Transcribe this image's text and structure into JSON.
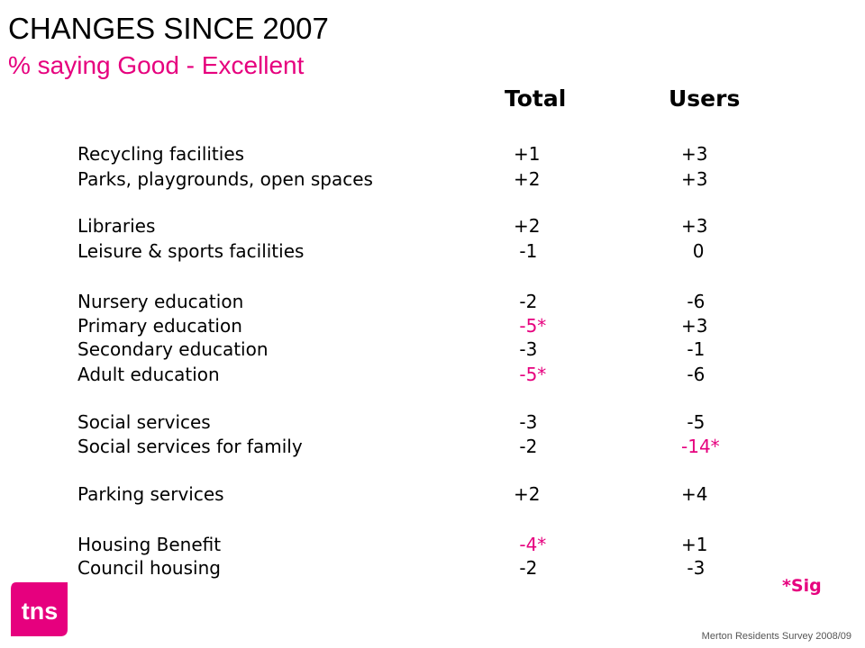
{
  "title": "CHANGES SINCE 2007",
  "subtitle": "% saying Good - Excellent",
  "columns": {
    "total": "Total",
    "users": "Users"
  },
  "rows": [
    {
      "label": "Recycling facilities",
      "total": "+1",
      "users": "+3",
      "total_sig": false,
      "users_sig": false
    },
    {
      "label": "Parks, playgrounds, open spaces",
      "total": "+2",
      "users": "+3",
      "total_sig": false,
      "users_sig": false
    },
    {
      "label": "Libraries",
      "total": "+2",
      "users": "+3",
      "total_sig": false,
      "users_sig": false
    },
    {
      "label": "Leisure & sports facilities",
      "total": " -1",
      "users": "  0",
      "total_sig": false,
      "users_sig": false
    },
    {
      "label": "Nursery education",
      "total": " -2",
      "users": " -6",
      "total_sig": false,
      "users_sig": false
    },
    {
      "label": "Primary education",
      "total": " -5*",
      "users": "+3",
      "total_sig": true,
      "users_sig": false
    },
    {
      "label": "Secondary education",
      "total": " -3",
      "users": " -1",
      "total_sig": false,
      "users_sig": false
    },
    {
      "label": "Adult education",
      "total": " -5*",
      "users": " -6",
      "total_sig": true,
      "users_sig": false
    },
    {
      "label": "Social services",
      "total": " -3",
      "users": " -5",
      "total_sig": false,
      "users_sig": false
    },
    {
      "label": "Social services for family",
      "total": " -2",
      "users": "-14*",
      "total_sig": false,
      "users_sig": true
    },
    {
      "label": "Parking services",
      "total": "+2",
      "users": "+4",
      "total_sig": false,
      "users_sig": false
    },
    {
      "label": "Housing Benefit",
      "total": " -4*",
      "users": "+1",
      "total_sig": true,
      "users_sig": false
    },
    {
      "label": "Council housing",
      "total": " -2",
      "users": " -3",
      "total_sig": false,
      "users_sig": false
    }
  ],
  "sig_note": "*Sig",
  "logo_text": "tns",
  "footer": "Merton Residents Survey 2008/09",
  "colors": {
    "accent": "#e6007e",
    "text": "#000000",
    "footer": "#555555"
  }
}
